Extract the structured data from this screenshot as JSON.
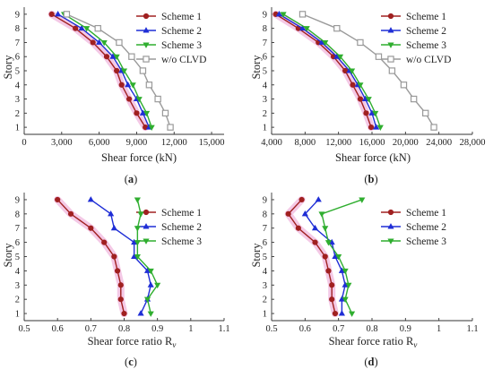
{
  "colors": {
    "scheme1": "#a02020",
    "scheme2": "#1f2ed6",
    "scheme3": "#2fae2f",
    "clvd": "#9a9a9a",
    "highlight": "#f4c9e6"
  },
  "chart_data": [
    {
      "type": "line",
      "panel_label": "a",
      "xlabel": "Shear force (kN)",
      "ylabel": "Story",
      "xlim": [
        0,
        16000
      ],
      "ylim": [
        0.5,
        9.5
      ],
      "xticks": [
        0,
        3000,
        6000,
        9000,
        12000,
        15000
      ],
      "xtick_labels": [
        "0",
        "3,000",
        "6,000",
        "9,000",
        "12,000",
        "15,000"
      ],
      "yticks": [
        1,
        2,
        3,
        4,
        5,
        6,
        7,
        8,
        9
      ],
      "legend": "top-right",
      "y": [
        1,
        2,
        3,
        4,
        5,
        6,
        7,
        8,
        9
      ],
      "series": [
        {
          "name": "Scheme 1",
          "color_key": "scheme1",
          "marker": "circle",
          "highlight": true,
          "x": [
            9700,
            9000,
            8400,
            7800,
            7400,
            6600,
            5500,
            4100,
            2200
          ]
        },
        {
          "name": "Scheme 2",
          "color_key": "scheme2",
          "marker": "triangle-up",
          "highlight": false,
          "x": [
            10000,
            9500,
            9000,
            8300,
            7800,
            7100,
            6000,
            4600,
            2700
          ]
        },
        {
          "name": "Scheme 3",
          "color_key": "scheme3",
          "marker": "triangle-down",
          "highlight": false,
          "x": [
            10200,
            9800,
            9200,
            8700,
            8000,
            7400,
            6400,
            5000,
            3200
          ]
        },
        {
          "name": "w/o CLVD",
          "color_key": "clvd",
          "marker": "square",
          "highlight": false,
          "x": [
            11700,
            11300,
            10700,
            10000,
            9500,
            8600,
            7600,
            5900,
            3400
          ]
        }
      ]
    },
    {
      "type": "line",
      "panel_label": "b",
      "xlabel": "Shear force (kN)",
      "ylabel": "Story",
      "xlim": [
        4000,
        28000
      ],
      "ylim": [
        0.5,
        9.5
      ],
      "xticks": [
        4000,
        8000,
        12000,
        16000,
        20000,
        24000,
        28000
      ],
      "xtick_labels": [
        "4,000",
        "8,000",
        "12,000",
        "16,000",
        "20,000",
        "24,000",
        "28,000"
      ],
      "yticks": [
        1,
        2,
        3,
        4,
        5,
        6,
        7,
        8,
        9
      ],
      "legend": "top-right",
      "y": [
        1,
        2,
        3,
        4,
        5,
        6,
        7,
        8,
        9
      ],
      "series": [
        {
          "name": "Scheme 1",
          "color_key": "scheme1",
          "marker": "circle",
          "highlight": true,
          "x": [
            15900,
            15300,
            14600,
            13700,
            12800,
            11400,
            9600,
            7200,
            4500
          ]
        },
        {
          "name": "Scheme 2",
          "color_key": "scheme2",
          "marker": "triangle-up",
          "highlight": false,
          "x": [
            16500,
            16000,
            15200,
            14300,
            13300,
            11800,
            10000,
            7700,
            4900
          ]
        },
        {
          "name": "Scheme 3",
          "color_key": "scheme3",
          "marker": "triangle-down",
          "highlight": false,
          "x": [
            17000,
            16400,
            15600,
            14600,
            13600,
            12200,
            10400,
            8200,
            5400
          ]
        },
        {
          "name": "w/o CLVD",
          "color_key": "clvd",
          "marker": "square",
          "highlight": false,
          "x": [
            23400,
            22400,
            21000,
            19800,
            18400,
            16800,
            14600,
            11800,
            7700
          ]
        }
      ]
    },
    {
      "type": "line",
      "panel_label": "c",
      "xlabel": "Shear force ratio R",
      "xlabel_sub": "v",
      "ylabel": "Story",
      "xlim": [
        0.5,
        1.1
      ],
      "ylim": [
        0.5,
        9.5
      ],
      "xticks": [
        0.5,
        0.6,
        0.7,
        0.8,
        0.9,
        1.0,
        1.1
      ],
      "xtick_labels": [
        "0.5",
        "0.6",
        "0.7",
        "0.8",
        "0.9",
        "1",
        "1.1"
      ],
      "yticks": [
        1,
        2,
        3,
        4,
        5,
        6,
        7,
        8,
        9
      ],
      "legend": "top-right",
      "y": [
        1,
        2,
        3,
        4,
        5,
        6,
        7,
        8,
        9
      ],
      "series": [
        {
          "name": "Scheme 1",
          "color_key": "scheme1",
          "marker": "circle",
          "highlight": true,
          "x": [
            0.8,
            0.79,
            0.79,
            0.78,
            0.77,
            0.74,
            0.7,
            0.64,
            0.6
          ]
        },
        {
          "name": "Scheme 2",
          "color_key": "scheme2",
          "marker": "triangle-up",
          "highlight": false,
          "x": [
            0.85,
            0.87,
            0.88,
            0.87,
            0.83,
            0.83,
            0.77,
            0.76,
            0.7
          ]
        },
        {
          "name": "Scheme 3",
          "color_key": "scheme3",
          "marker": "triangle-down",
          "highlight": false,
          "x": [
            0.88,
            0.87,
            0.9,
            0.88,
            0.84,
            0.84,
            0.84,
            0.85,
            0.84
          ]
        }
      ]
    },
    {
      "type": "line",
      "panel_label": "d",
      "xlabel": "Shear force ratio R",
      "xlabel_sub": "v",
      "ylabel": "Story",
      "xlim": [
        0.5,
        1.1
      ],
      "ylim": [
        0.5,
        9.5
      ],
      "xticks": [
        0.5,
        0.6,
        0.7,
        0.8,
        0.9,
        1.0,
        1.1
      ],
      "xtick_labels": [
        "0.5",
        "0.6",
        "0.7",
        "0.8",
        "0.9",
        "1",
        "1.1"
      ],
      "yticks": [
        1,
        2,
        3,
        4,
        5,
        6,
        7,
        8,
        9
      ],
      "legend": "top-right",
      "y": [
        1,
        2,
        3,
        4,
        5,
        6,
        7,
        8,
        9
      ],
      "series": [
        {
          "name": "Scheme 1",
          "color_key": "scheme1",
          "marker": "circle",
          "highlight": true,
          "x": [
            0.69,
            0.68,
            0.68,
            0.67,
            0.66,
            0.63,
            0.58,
            0.55,
            0.59
          ]
        },
        {
          "name": "Scheme 2",
          "color_key": "scheme2",
          "marker": "triangle-up",
          "highlight": false,
          "x": [
            0.71,
            0.71,
            0.72,
            0.71,
            0.69,
            0.68,
            0.63,
            0.6,
            0.64
          ]
        },
        {
          "name": "Scheme 3",
          "color_key": "scheme3",
          "marker": "triangle-down",
          "highlight": false,
          "x": [
            0.74,
            0.72,
            0.73,
            0.72,
            0.7,
            0.67,
            0.66,
            0.65,
            0.77
          ]
        }
      ]
    }
  ]
}
